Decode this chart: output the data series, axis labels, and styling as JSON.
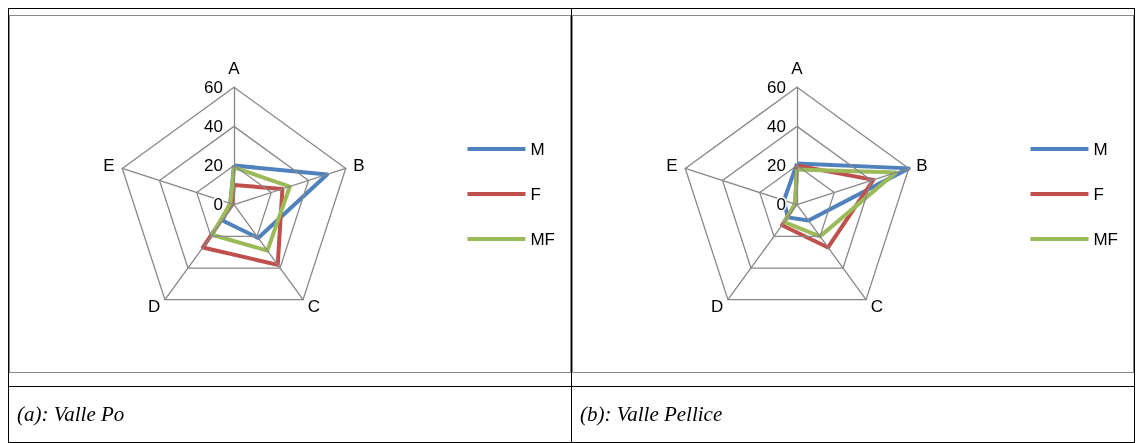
{
  "chart_data": [
    {
      "type": "radar",
      "categories": [
        "A",
        "B",
        "C",
        "D",
        "E"
      ],
      "ylim": [
        0,
        60
      ],
      "yticks": [
        0,
        20,
        40,
        60
      ],
      "legend": "right",
      "grid": true,
      "annotations": [
        "(a): Valle Po"
      ],
      "series": [
        {
          "name": "M",
          "color": "#4f81bd",
          "values": [
            20,
            50,
            21,
            10,
            2
          ]
        },
        {
          "name": "F",
          "color": "#c0504d",
          "values": [
            10,
            26,
            38,
            27,
            1
          ]
        },
        {
          "name": "MF",
          "color": "#9bbb59",
          "values": [
            19,
            30,
            29,
            19,
            2
          ]
        }
      ]
    },
    {
      "type": "radar",
      "categories": [
        "A",
        "B",
        "C",
        "D",
        "E"
      ],
      "ylim": [
        0,
        60
      ],
      "yticks": [
        0,
        20,
        40,
        60
      ],
      "legend": "right",
      "grid": true,
      "annotations": [
        "(b): Valle Pellice"
      ],
      "series": [
        {
          "name": "M",
          "color": "#4f81bd",
          "values": [
            21,
            60,
            10,
            8,
            7
          ]
        },
        {
          "name": "F",
          "color": "#c0504d",
          "values": [
            20,
            41,
            27,
            13,
            1
          ]
        },
        {
          "name": "MF",
          "color": "#9bbb59",
          "values": [
            18,
            53,
            20,
            11,
            1
          ]
        }
      ]
    }
  ]
}
